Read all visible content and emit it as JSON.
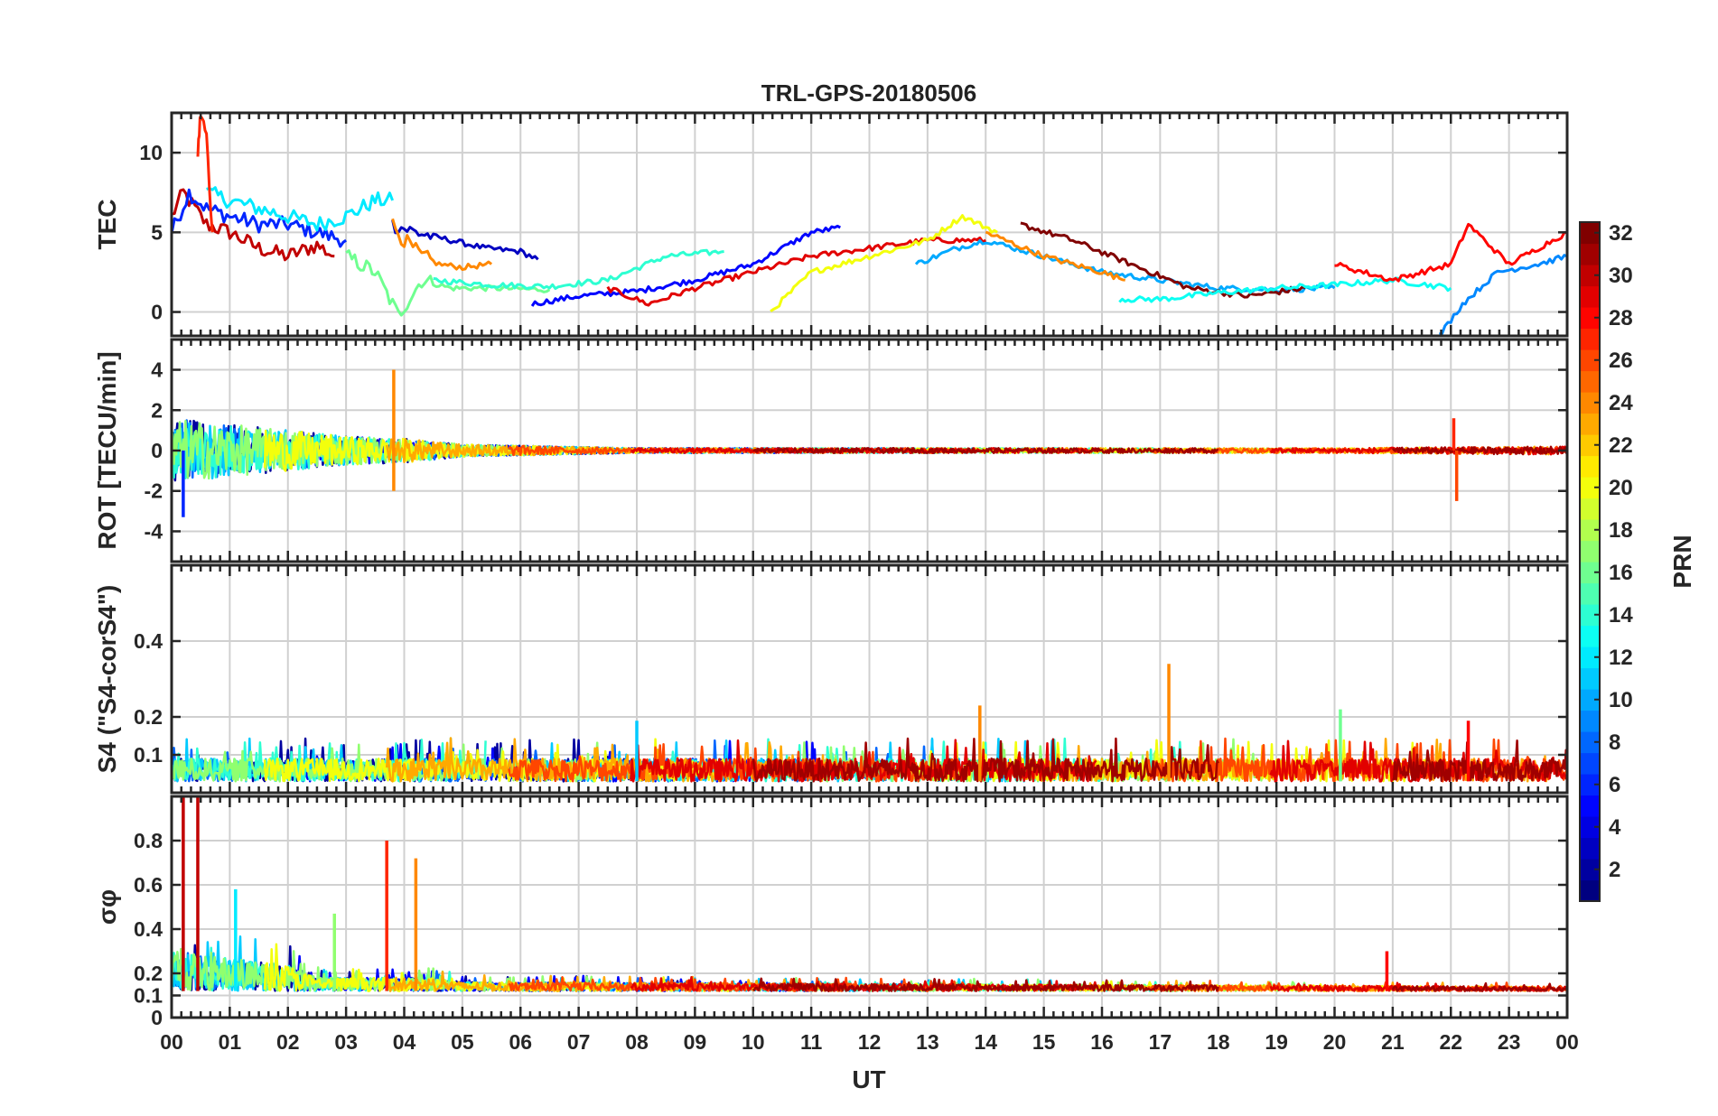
{
  "chart_data": {
    "title": "TRL-GPS-20180506",
    "xlabel": "UT",
    "xticks": [
      "00",
      "01",
      "02",
      "03",
      "04",
      "05",
      "06",
      "07",
      "08",
      "09",
      "10",
      "11",
      "12",
      "13",
      "14",
      "15",
      "16",
      "17",
      "18",
      "19",
      "20",
      "21",
      "22",
      "23",
      "00"
    ],
    "xlim": [
      0,
      24
    ],
    "grid": true,
    "colorbar": {
      "label": "PRN",
      "range": [
        1,
        32
      ],
      "ticks": [
        2,
        4,
        6,
        8,
        10,
        12,
        14,
        16,
        18,
        20,
        22,
        24,
        26,
        28,
        30,
        32
      ],
      "colormap": "jet"
    },
    "panels": [
      {
        "name": "TEC",
        "type": "line",
        "ylabel": "TEC",
        "ylim": [
          -1.5,
          12.5
        ],
        "yticks": [
          0,
          5,
          10
        ],
        "series": [
          {
            "prn": 30,
            "x": [
              0,
              0.2,
              0.4,
              0.6,
              1.0,
              1.5,
              2.0,
              2.5,
              2.8
            ],
            "y": [
              6,
              7.5,
              6.5,
              5.5,
              5,
              4,
              3.5,
              4.2,
              3.5
            ]
          },
          {
            "prn": 6,
            "x": [
              0,
              0.3,
              0.6,
              1.0,
              1.5,
              2.0,
              2.5,
              3.0
            ],
            "y": [
              5,
              7.5,
              6.5,
              6,
              5.5,
              5.5,
              5,
              4.5
            ]
          },
          {
            "prn": 12,
            "x": [
              0.6,
              1.0,
              1.5,
              2.0,
              2.5,
              3.0,
              3.5,
              3.8
            ],
            "y": [
              7.5,
              7.0,
              6.5,
              6.0,
              5.5,
              6.0,
              7.0,
              7.0
            ]
          },
          {
            "prn": 27,
            "x": [
              0.45,
              0.5,
              0.6,
              0.7
            ],
            "y": [
              10,
              12.5,
              11,
              5
            ]
          },
          {
            "prn": 3,
            "x": [
              3.8,
              4.2,
              4.8,
              5.4,
              6.0,
              6.3
            ],
            "y": [
              5.5,
              5.0,
              4.5,
              4.0,
              3.8,
              3.3
            ]
          },
          {
            "prn": 16,
            "x": [
              3.0,
              3.5,
              3.9,
              4.3,
              4.8,
              5.5,
              6.5
            ],
            "y": [
              3.5,
              2.5,
              -0.2,
              2,
              1.5,
              1.5,
              1.4
            ]
          },
          {
            "prn": 24,
            "x": [
              3.8,
              4.0,
              4.3,
              4.6,
              5.0,
              5.5
            ],
            "y": [
              5.5,
              4.5,
              3.5,
              3,
              2.8,
              3.0
            ]
          },
          {
            "prn": 14,
            "x": [
              4.5,
              5.5,
              6.5,
              7.5,
              8.5,
              9.5
            ],
            "y": [
              2.0,
              1.7,
              1.6,
              2.0,
              3.5,
              3.8
            ]
          },
          {
            "prn": 5,
            "x": [
              6.2,
              7.0,
              8.0,
              9.0,
              10.0,
              11.0,
              11.5
            ],
            "y": [
              0.5,
              1.0,
              1.3,
              2.0,
              3.0,
              5.0,
              5.3
            ]
          },
          {
            "prn": 29,
            "x": [
              7.5,
              8.2,
              9.0,
              10.0,
              11.0,
              12.0,
              13.0,
              14.0
            ],
            "y": [
              1.5,
              0.5,
              1.5,
              2.5,
              3.5,
              4.0,
              4.5,
              4.5
            ]
          },
          {
            "prn": 20,
            "x": [
              10.3,
              11.0,
              12.0,
              13.0,
              13.6,
              14.2
            ],
            "y": [
              0.0,
              2.5,
              3.5,
              4.5,
              6.0,
              5.0
            ]
          },
          {
            "prn": 10,
            "x": [
              12.8,
              13.5,
              14.0,
              15.0,
              16.0,
              17.0,
              18.0,
              19.0,
              20.0
            ],
            "y": [
              3.0,
              4.0,
              4.5,
              3.5,
              2.5,
              2.0,
              1.5,
              1.4,
              1.5
            ]
          },
          {
            "prn": 32,
            "x": [
              14.6,
              15.5,
              16.5,
              17.5,
              18.5,
              19.5
            ],
            "y": [
              5.5,
              4.5,
              3.0,
              1.5,
              1.0,
              1.5
            ]
          },
          {
            "prn": 24,
            "x": [
              14.0,
              15.0,
              16.0,
              16.4
            ],
            "y": [
              5.0,
              3.5,
              2.5,
              2.0
            ]
          },
          {
            "prn": 13,
            "x": [
              16.3,
              17.0,
              18.0,
              19.0,
              20.0,
              21.0,
              22.0
            ],
            "y": [
              0.8,
              0.8,
              1.2,
              1.5,
              1.7,
              2.0,
              1.5
            ]
          },
          {
            "prn": 28,
            "x": [
              20.0,
              20.5,
              21.0,
              21.5,
              22.0,
              22.3,
              23.0,
              23.5,
              24.0
            ],
            "y": [
              3.0,
              2.5,
              2.0,
              2.5,
              3.0,
              5.5,
              3.0,
              4.0,
              5.0
            ]
          },
          {
            "prn": 9,
            "x": [
              21.8,
              22.2,
              22.8,
              23.5,
              24.0
            ],
            "y": [
              -1.5,
              0.5,
              2.5,
              3.0,
              3.5
            ]
          }
        ]
      },
      {
        "name": "ROT",
        "type": "line",
        "ylabel": "ROT [TECU/min]",
        "ylim": [
          -5.5,
          5.5
        ],
        "yticks": [
          -4,
          -2,
          0,
          2,
          4
        ],
        "noise_profile": [
          [
            0,
            1.6
          ],
          [
            2,
            1.0
          ],
          [
            3,
            0.7
          ],
          [
            4,
            0.6
          ],
          [
            5,
            0.3
          ],
          [
            8,
            0.12
          ],
          [
            20,
            0.12
          ],
          [
            24,
            0.2
          ]
        ],
        "spikes": [
          {
            "x": 3.82,
            "y": 4.0,
            "prn": 24
          },
          {
            "x": 3.82,
            "y": -2.0,
            "prn": 24
          },
          {
            "x": 0.2,
            "y": -3.3,
            "prn": 6
          },
          {
            "x": 22.1,
            "y": -2.5,
            "prn": 26
          },
          {
            "x": 22.05,
            "y": 1.6,
            "prn": 27
          }
        ]
      },
      {
        "name": "S4",
        "type": "line",
        "ylabel": "S4 (\"S4-corS4\")",
        "ylim": [
          0,
          0.6
        ],
        "yticks": [
          0.1,
          0.2,
          0.4
        ],
        "noise_profile": [
          [
            0,
            0.06
          ],
          [
            24,
            0.06
          ]
        ],
        "spikes": [
          {
            "x": 17.15,
            "y": 0.34,
            "prn": 24
          },
          {
            "x": 13.9,
            "y": 0.23,
            "prn": 24
          },
          {
            "x": 20.1,
            "y": 0.22,
            "prn": 16
          },
          {
            "x": 8.0,
            "y": 0.19,
            "prn": 11
          },
          {
            "x": 22.3,
            "y": 0.19,
            "prn": 28
          }
        ]
      },
      {
        "name": "sigma_phi",
        "type": "line",
        "ylabel": "σφ",
        "ylim": [
          0,
          1.0
        ],
        "yticks": [
          0,
          0.1,
          0.2,
          0.4,
          0.6,
          0.8
        ],
        "noise_profile": [
          [
            0,
            0.18
          ],
          [
            2,
            0.12
          ],
          [
            2.5,
            0.06
          ],
          [
            4.5,
            0.06
          ],
          [
            5,
            0.04
          ],
          [
            24,
            0.02
          ]
        ],
        "spikes": [
          {
            "x": 0.2,
            "y": 1.0,
            "prn": 30
          },
          {
            "x": 0.45,
            "y": 1.0,
            "prn": 30
          },
          {
            "x": 3.7,
            "y": 0.8,
            "prn": 27
          },
          {
            "x": 4.2,
            "y": 0.72,
            "prn": 24
          },
          {
            "x": 1.1,
            "y": 0.58,
            "prn": 12
          },
          {
            "x": 2.8,
            "y": 0.47,
            "prn": 17
          },
          {
            "x": 20.9,
            "y": 0.3,
            "prn": 28
          }
        ]
      }
    ]
  }
}
